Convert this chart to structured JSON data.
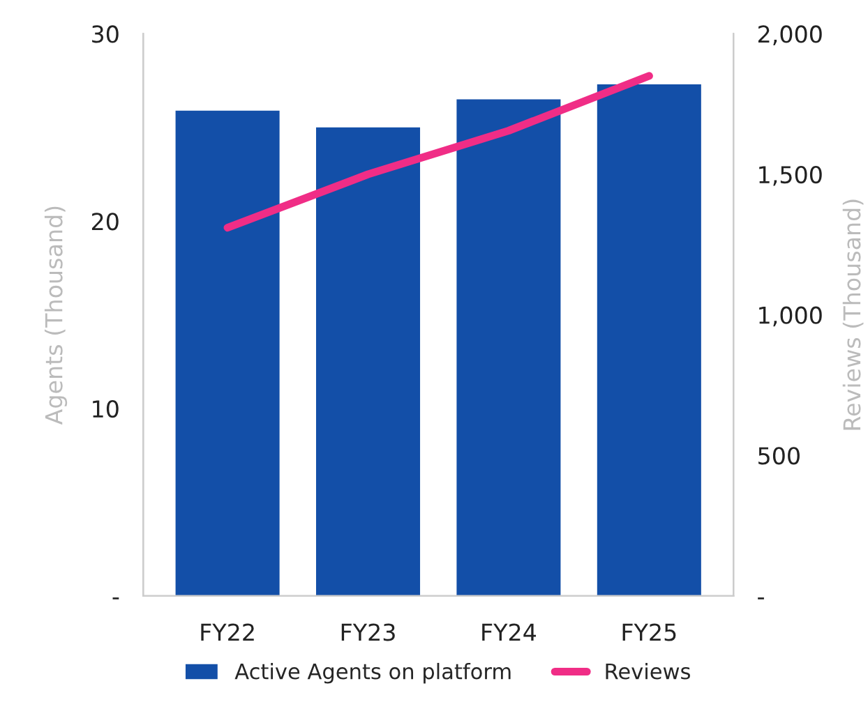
{
  "chart_data": {
    "type": "bar",
    "categories": [
      "FY22",
      "FY23",
      "FY24",
      "FY25"
    ],
    "ylabel": "Agents (Thousand)",
    "y2label": "Reviews (Thousand)",
    "ylim": [
      0,
      30
    ],
    "yticks": [
      {
        "value": 0,
        "label": "-"
      },
      10,
      20,
      30
    ],
    "y2lim": [
      0,
      2000
    ],
    "y2ticks": [
      {
        "value": 0,
        "label": "-"
      },
      {
        "value": 500,
        "label": "500"
      },
      {
        "value": 1000,
        "label": "1,000"
      },
      {
        "value": 1500,
        "label": "1,500"
      },
      {
        "value": 2000,
        "label": "2,000"
      }
    ],
    "legend": "bottom",
    "grid": false,
    "series": [
      {
        "name": "Active Agents on platform",
        "color": "#134fa8",
        "values": [
          25.9,
          25.0,
          26.5,
          27.3
        ]
      },
      {
        "name": "Reviews",
        "type": "line",
        "axis": "y2",
        "color": "#f02d86",
        "values": [
          1310,
          1500,
          1655,
          1850
        ]
      }
    ]
  }
}
